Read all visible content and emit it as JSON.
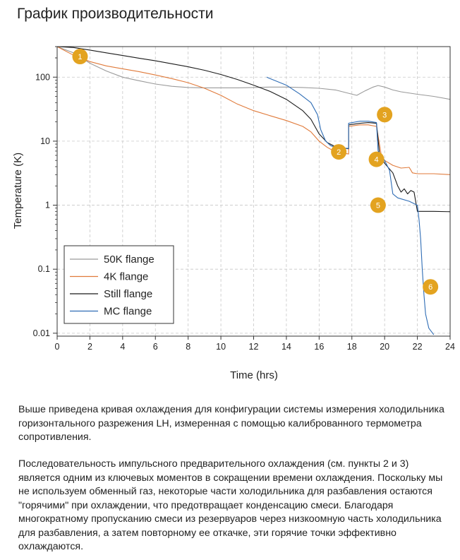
{
  "title": "График производительности",
  "description": {
    "p1": "Выше приведена кривая охлаждения для конфигурации системы измерения холодильника горизонтального разрежения LH, измеренная с помощью калиброванного термометра сопротивления.",
    "p2": "Последовательность импульсного предварительного охлаждения (см. пункты 2 и 3) является одним из ключевых моментов в сокращении времени охлаждения. Поскольку мы не используем обменный газ, некоторые части холодильника для разбавления остаются \"горячими\" при охлаждении, что предотвращает конденсацию смеси. Благодаря многократному пропусканию смеси из резервуаров через низкоомную часть холодильника для разбавления, а затем повторному ее откачке, эти горячие точки эффективно охлаждаются."
  },
  "chart_data": {
    "type": "line",
    "xlabel": "Time (hrs)",
    "ylabel": "Temperature (K)",
    "xlim": [
      0,
      24
    ],
    "ylim": [
      0.009,
      300
    ],
    "yscale": "log",
    "xticks": [
      0,
      2,
      4,
      6,
      8,
      10,
      12,
      14,
      16,
      18,
      20,
      22,
      24
    ],
    "yticks": [
      0.01,
      0.1,
      1,
      10,
      100
    ],
    "ytick_labels": [
      "0.01",
      "0.1",
      "1",
      "10",
      "100"
    ],
    "grid": true,
    "legend_position": "bottom-left",
    "series": [
      {
        "name": "50K flange",
        "color": "#9a9a9a",
        "points": [
          [
            0,
            300
          ],
          [
            1,
            240
          ],
          [
            2,
            165
          ],
          [
            3,
            125
          ],
          [
            4,
            100
          ],
          [
            5,
            88
          ],
          [
            6,
            78
          ],
          [
            7,
            72
          ],
          [
            8,
            69
          ],
          [
            9,
            68
          ],
          [
            10,
            68
          ],
          [
            11,
            68
          ],
          [
            12,
            69
          ],
          [
            13,
            70
          ],
          [
            14,
            70
          ],
          [
            15,
            69
          ],
          [
            16,
            67
          ],
          [
            17,
            63
          ],
          [
            17.8,
            56
          ],
          [
            18.3,
            52
          ],
          [
            18.8,
            61
          ],
          [
            19.3,
            70
          ],
          [
            19.6,
            74
          ],
          [
            20,
            70
          ],
          [
            20.5,
            63
          ],
          [
            21,
            59
          ],
          [
            22,
            54
          ],
          [
            23,
            50
          ],
          [
            24,
            45
          ]
        ]
      },
      {
        "name": "4K flange",
        "color": "#e07a3a",
        "points": [
          [
            0,
            300
          ],
          [
            1,
            220
          ],
          [
            2,
            175
          ],
          [
            3,
            150
          ],
          [
            4,
            135
          ],
          [
            5,
            122
          ],
          [
            6,
            108
          ],
          [
            7,
            95
          ],
          [
            8,
            82
          ],
          [
            9,
            67
          ],
          [
            10,
            52
          ],
          [
            11,
            38
          ],
          [
            12,
            30
          ],
          [
            13,
            25
          ],
          [
            14,
            21
          ],
          [
            15,
            17
          ],
          [
            15.5,
            14
          ],
          [
            16,
            10
          ],
          [
            16.5,
            8
          ],
          [
            17,
            6.8
          ],
          [
            17.5,
            6.5
          ],
          [
            17.8,
            6.3
          ],
          [
            17.8,
            17
          ],
          [
            18.5,
            18
          ],
          [
            19,
            18
          ],
          [
            19.5,
            17
          ],
          [
            19.8,
            6
          ],
          [
            20,
            5
          ],
          [
            20.5,
            4.2
          ],
          [
            21,
            3.8
          ],
          [
            21.5,
            3.9
          ],
          [
            21.7,
            3.2
          ],
          [
            22,
            3.1
          ],
          [
            23,
            3.1
          ],
          [
            24,
            3.0
          ]
        ]
      },
      {
        "name": "Still flange",
        "color": "#1a1a1a",
        "points": [
          [
            0,
            300
          ],
          [
            1,
            290
          ],
          [
            2,
            265
          ],
          [
            3,
            240
          ],
          [
            4,
            218
          ],
          [
            5,
            198
          ],
          [
            6,
            180
          ],
          [
            7,
            162
          ],
          [
            8,
            145
          ],
          [
            9,
            128
          ],
          [
            10,
            110
          ],
          [
            11,
            92
          ],
          [
            12,
            75
          ],
          [
            13,
            60
          ],
          [
            14,
            45
          ],
          [
            15,
            30
          ],
          [
            15.5,
            22
          ],
          [
            16,
            13
          ],
          [
            16.5,
            9.5
          ],
          [
            17,
            8.2
          ],
          [
            17.5,
            7.8
          ],
          [
            17.8,
            7.6
          ],
          [
            17.8,
            18
          ],
          [
            18.5,
            19
          ],
          [
            19,
            19.5
          ],
          [
            19.5,
            19
          ],
          [
            19.7,
            6
          ],
          [
            20,
            4.5
          ],
          [
            20.5,
            3.2
          ],
          [
            20.8,
            2.0
          ],
          [
            21,
            1.6
          ],
          [
            21.2,
            1.8
          ],
          [
            21.4,
            1.5
          ],
          [
            21.6,
            1.7
          ],
          [
            21.8,
            1.6
          ],
          [
            22,
            0.8
          ],
          [
            23,
            0.8
          ],
          [
            24,
            0.79
          ]
        ]
      },
      {
        "name": "MC flange",
        "color": "#2f6db5",
        "points": [
          [
            12.8,
            100
          ],
          [
            13,
            95
          ],
          [
            14,
            75
          ],
          [
            14.8,
            55
          ],
          [
            15.5,
            40
          ],
          [
            15.9,
            26
          ],
          [
            16.1,
            15
          ],
          [
            16.4,
            10
          ],
          [
            16.7,
            8.5
          ],
          [
            17,
            8
          ],
          [
            17.5,
            7.8
          ],
          [
            17.8,
            7.7
          ],
          [
            17.8,
            19
          ],
          [
            18.5,
            20.5
          ],
          [
            19,
            20.5
          ],
          [
            19.5,
            19.5
          ],
          [
            19.6,
            7
          ],
          [
            20,
            5
          ],
          [
            20.3,
            3.5
          ],
          [
            20.5,
            1.5
          ],
          [
            20.8,
            1.3
          ],
          [
            21.5,
            1.15
          ],
          [
            22,
            1.0
          ],
          [
            22.1,
            0.6
          ],
          [
            22.2,
            0.3
          ],
          [
            22.3,
            0.1
          ],
          [
            22.4,
            0.04
          ],
          [
            22.5,
            0.02
          ],
          [
            22.7,
            0.012
          ],
          [
            23,
            0.0095
          ]
        ]
      }
    ],
    "annotations": [
      {
        "label": "1",
        "x": 1.4,
        "y": 210
      },
      {
        "label": "2",
        "x": 17.2,
        "y": 6.8
      },
      {
        "label": "3",
        "x": 20.0,
        "y": 26
      },
      {
        "label": "4",
        "x": 19.5,
        "y": 5.2
      },
      {
        "label": "5",
        "x": 19.6,
        "y": 1.0
      },
      {
        "label": "6",
        "x": 22.8,
        "y": 0.053
      }
    ],
    "annotation_color": "#e3a320"
  }
}
